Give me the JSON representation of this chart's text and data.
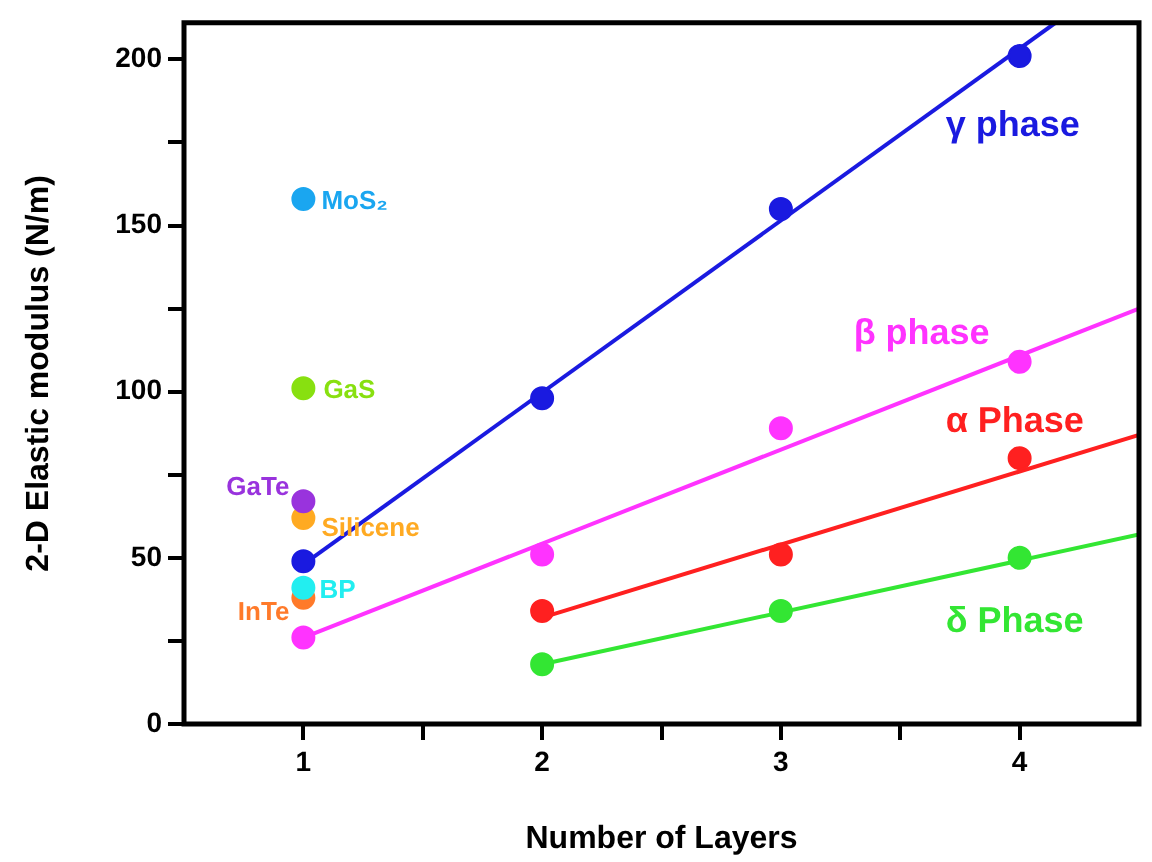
{
  "chart_data": {
    "type": "scatter",
    "xlabel": "Number of Layers",
    "ylabel": "2-D Elastic modulus (N/m)",
    "xlim": [
      0.5,
      4.5
    ],
    "xticks": [
      1,
      {
        "value": 1.5,
        "label": null
      },
      2,
      {
        "value": 2.5,
        "label": null
      },
      3,
      {
        "value": 3.5,
        "label": null
      },
      4
    ],
    "ylim": [
      0,
      211
    ],
    "yticks": [
      0,
      {
        "value": 25,
        "label": null
      },
      50,
      {
        "value": 75,
        "label": null
      },
      100,
      {
        "value": 125,
        "label": null
      },
      150,
      {
        "value": 175,
        "label": null
      },
      200
    ],
    "grid": false,
    "legend": false,
    "marker": "circle",
    "series": [
      {
        "name": "γ phase",
        "type": "scatter",
        "color": "#1a1ae0",
        "x": [
          1,
          2,
          3,
          4
        ],
        "values": [
          49,
          98,
          155,
          201
        ]
      },
      {
        "type": "line",
        "marker": "none",
        "color": "#1a1ae0",
        "x": [
          1,
          4.15
        ],
        "values": [
          48,
          211
        ]
      },
      {
        "name": "β phase",
        "type": "scatter",
        "color": "#ff33ff",
        "x": [
          1,
          2,
          3,
          4
        ],
        "values": [
          26,
          51,
          89,
          109
        ]
      },
      {
        "type": "line",
        "marker": "none",
        "color": "#ff33ff",
        "x": [
          1,
          4.5
        ],
        "values": [
          26,
          125
        ]
      },
      {
        "name": "α Phase",
        "type": "scatter",
        "color": "#ff2020",
        "x": [
          2,
          3,
          4
        ],
        "values": [
          34,
          51,
          80
        ]
      },
      {
        "type": "line",
        "marker": "none",
        "color": "#ff2020",
        "x": [
          2,
          4.5
        ],
        "values": [
          32,
          87
        ]
      },
      {
        "name": "δ Phase",
        "type": "scatter",
        "color": "#33e633",
        "x": [
          2,
          3,
          4
        ],
        "values": [
          18,
          34,
          50
        ]
      },
      {
        "type": "line",
        "marker": "none",
        "color": "#33e633",
        "x": [
          2,
          4.5
        ],
        "values": [
          18,
          57
        ]
      },
      {
        "name": "MoS₂",
        "type": "scatter",
        "color": "#1aa6f0",
        "x": [
          1
        ],
        "values": [
          158
        ]
      },
      {
        "name": "GaS",
        "type": "scatter",
        "color": "#88e010",
        "x": [
          1
        ],
        "values": [
          101
        ]
      },
      {
        "name": "GaTe",
        "type": "scatter",
        "color": "#9933dd",
        "x": [
          1
        ],
        "values": [
          67
        ]
      },
      {
        "name": "Silicene",
        "type": "scatter",
        "color": "#ffaa22",
        "x": [
          1
        ],
        "values": [
          62
        ]
      },
      {
        "name": "BP",
        "type": "scatter",
        "color": "#22eef0",
        "x": [
          1
        ],
        "values": [
          41
        ]
      },
      {
        "name": "InTe",
        "type": "scatter",
        "color": "#ff7a2a",
        "x": [
          1
        ],
        "values": [
          38
        ]
      }
    ]
  }
}
